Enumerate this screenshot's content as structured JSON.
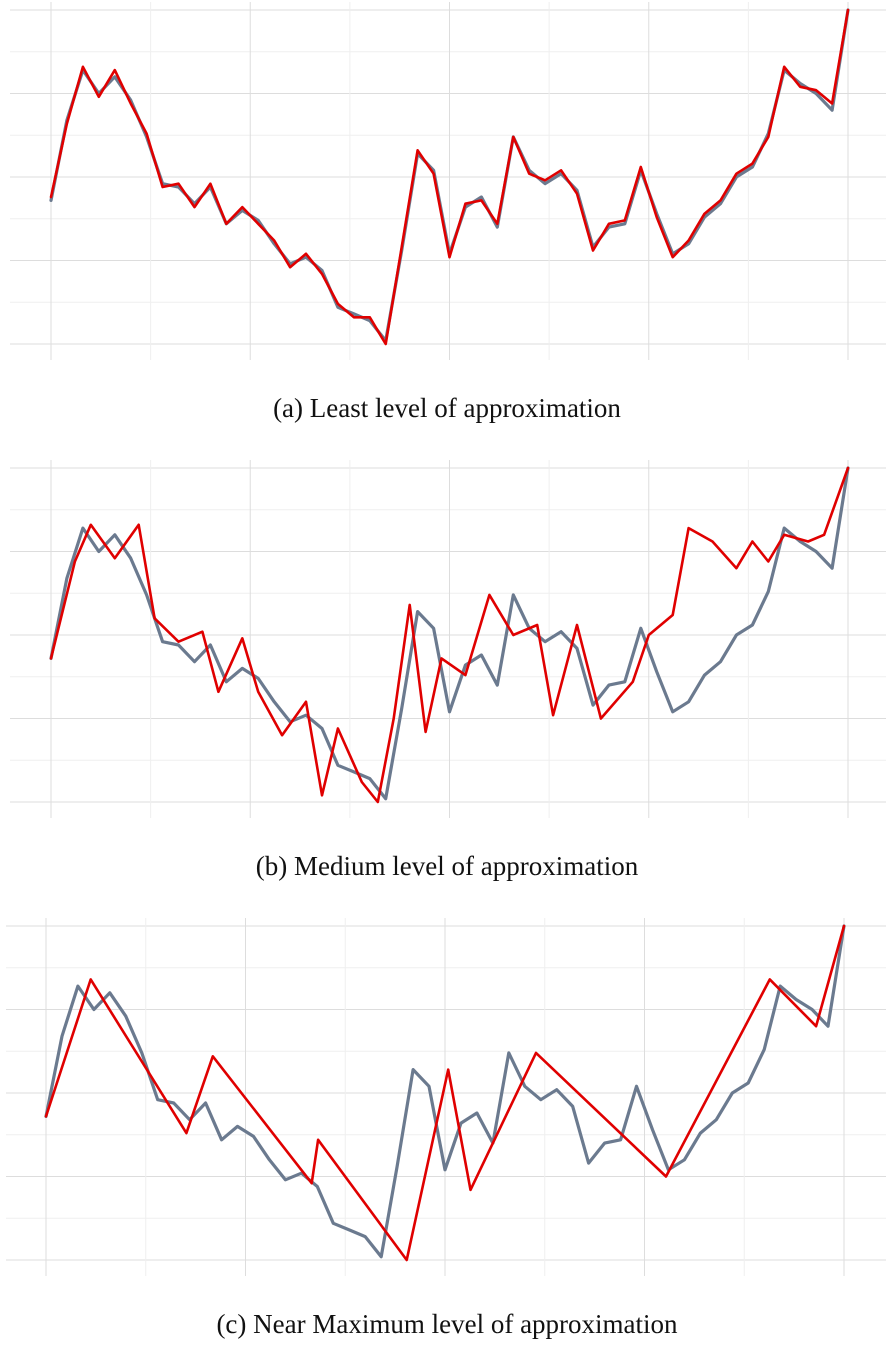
{
  "chart_data": [
    {
      "type": "line",
      "caption": "(a) Least level of approximation",
      "grid": true,
      "series": [
        {
          "role": "original",
          "color": "#6b7a8f",
          "x": [
            0,
            2,
            4,
            6,
            8,
            10,
            12,
            14,
            16,
            18,
            20,
            22,
            24,
            26,
            28,
            30,
            32,
            34,
            36,
            38,
            40,
            42,
            44,
            46,
            48,
            50,
            52,
            54,
            56,
            58,
            60,
            62,
            64,
            66,
            68,
            70,
            72,
            74,
            76,
            78,
            80,
            82,
            84,
            86,
            88,
            90,
            92,
            94,
            96,
            98,
            100
          ],
          "y": [
            0.43,
            0.67,
            0.82,
            0.75,
            0.8,
            0.73,
            0.62,
            0.48,
            0.47,
            0.42,
            0.47,
            0.36,
            0.4,
            0.37,
            0.3,
            0.24,
            0.26,
            0.22,
            0.11,
            0.09,
            0.07,
            0.01,
            0.28,
            0.57,
            0.52,
            0.27,
            0.41,
            0.44,
            0.35,
            0.62,
            0.52,
            0.48,
            0.51,
            0.46,
            0.29,
            0.35,
            0.36,
            0.52,
            0.39,
            0.27,
            0.3,
            0.38,
            0.42,
            0.5,
            0.53,
            0.63,
            0.82,
            0.78,
            0.75,
            0.7,
            1.0
          ]
        },
        {
          "role": "approximation",
          "color": "#e00000",
          "x": [
            0,
            2,
            4,
            6,
            8,
            10,
            12,
            14,
            16,
            18,
            20,
            22,
            24,
            26,
            28,
            30,
            32,
            34,
            36,
            38,
            40,
            42,
            44,
            46,
            48,
            50,
            52,
            54,
            56,
            58,
            60,
            62,
            64,
            66,
            68,
            70,
            72,
            74,
            76,
            78,
            80,
            82,
            84,
            86,
            88,
            90,
            92,
            94,
            96,
            98,
            100
          ],
          "y": [
            0.44,
            0.66,
            0.83,
            0.74,
            0.82,
            0.72,
            0.63,
            0.47,
            0.48,
            0.41,
            0.48,
            0.36,
            0.41,
            0.36,
            0.31,
            0.23,
            0.27,
            0.21,
            0.12,
            0.08,
            0.08,
            0.0,
            0.29,
            0.58,
            0.51,
            0.26,
            0.42,
            0.43,
            0.36,
            0.62,
            0.51,
            0.49,
            0.52,
            0.45,
            0.28,
            0.36,
            0.37,
            0.53,
            0.38,
            0.26,
            0.31,
            0.39,
            0.43,
            0.51,
            0.54,
            0.62,
            0.83,
            0.77,
            0.76,
            0.72,
            1.0
          ]
        }
      ]
    },
    {
      "type": "line",
      "caption": "(b) Medium level of approximation",
      "grid": true,
      "series": [
        {
          "role": "original",
          "color": "#6b7a8f",
          "x": [
            0,
            2,
            4,
            6,
            8,
            10,
            12,
            14,
            16,
            18,
            20,
            22,
            24,
            26,
            28,
            30,
            32,
            34,
            36,
            38,
            40,
            42,
            44,
            46,
            48,
            50,
            52,
            54,
            56,
            58,
            60,
            62,
            64,
            66,
            68,
            70,
            72,
            74,
            76,
            78,
            80,
            82,
            84,
            86,
            88,
            90,
            92,
            94,
            96,
            98,
            100
          ],
          "y": [
            0.43,
            0.67,
            0.82,
            0.75,
            0.8,
            0.73,
            0.62,
            0.48,
            0.47,
            0.42,
            0.47,
            0.36,
            0.4,
            0.37,
            0.3,
            0.24,
            0.26,
            0.22,
            0.11,
            0.09,
            0.07,
            0.01,
            0.28,
            0.57,
            0.52,
            0.27,
            0.41,
            0.44,
            0.35,
            0.62,
            0.52,
            0.48,
            0.51,
            0.46,
            0.29,
            0.35,
            0.36,
            0.52,
            0.39,
            0.27,
            0.3,
            0.38,
            0.42,
            0.5,
            0.53,
            0.63,
            0.82,
            0.78,
            0.75,
            0.7,
            1.0
          ]
        },
        {
          "role": "approximation",
          "color": "#e00000",
          "x": [
            0,
            3,
            5,
            8,
            11,
            13,
            16,
            19,
            21,
            24,
            26,
            29,
            32,
            34,
            36,
            39,
            41,
            43,
            45,
            47,
            49,
            52,
            55,
            58,
            61,
            63,
            66,
            69,
            73,
            75,
            78,
            80,
            83,
            86,
            88,
            90,
            92,
            95,
            97,
            100
          ],
          "y": [
            0.43,
            0.72,
            0.83,
            0.73,
            0.83,
            0.55,
            0.48,
            0.51,
            0.33,
            0.49,
            0.33,
            0.2,
            0.3,
            0.02,
            0.22,
            0.06,
            0.0,
            0.25,
            0.59,
            0.21,
            0.43,
            0.38,
            0.62,
            0.5,
            0.53,
            0.26,
            0.53,
            0.25,
            0.36,
            0.5,
            0.56,
            0.82,
            0.78,
            0.7,
            0.78,
            0.72,
            0.8,
            0.78,
            0.8,
            1.0
          ]
        }
      ]
    },
    {
      "type": "line",
      "caption": "(c) Near Maximum level of approximation",
      "grid": true,
      "series": [
        {
          "role": "original",
          "color": "#6b7a8f",
          "x": [
            0,
            2,
            4,
            6,
            8,
            10,
            12,
            14,
            16,
            18,
            20,
            22,
            24,
            26,
            28,
            30,
            32,
            34,
            36,
            38,
            40,
            42,
            44,
            46,
            48,
            50,
            52,
            54,
            56,
            58,
            60,
            62,
            64,
            66,
            68,
            70,
            72,
            74,
            76,
            78,
            80,
            82,
            84,
            86,
            88,
            90,
            92,
            94,
            96,
            98,
            100
          ],
          "y": [
            0.43,
            0.67,
            0.82,
            0.75,
            0.8,
            0.73,
            0.62,
            0.48,
            0.47,
            0.42,
            0.47,
            0.36,
            0.4,
            0.37,
            0.3,
            0.24,
            0.26,
            0.22,
            0.11,
            0.09,
            0.07,
            0.01,
            0.28,
            0.57,
            0.52,
            0.27,
            0.41,
            0.44,
            0.35,
            0.62,
            0.52,
            0.48,
            0.51,
            0.46,
            0.29,
            0.35,
            0.36,
            0.52,
            0.39,
            0.27,
            0.3,
            0.38,
            0.42,
            0.5,
            0.53,
            0.63,
            0.82,
            0.78,
            0.75,
            0.7,
            1.0
          ]
        },
        {
          "role": "approximation",
          "color": "#e00000",
          "x": [
            0,
            5.6,
            17.6,
            20.9,
            33.3,
            34.1,
            45.2,
            50.4,
            53.2,
            61.4,
            77.7,
            90.7,
            96.5,
            100
          ],
          "y": [
            0.43,
            0.84,
            0.38,
            0.61,
            0.23,
            0.36,
            0.0,
            0.57,
            0.21,
            0.62,
            0.25,
            0.84,
            0.7,
            1.0
          ]
        }
      ]
    }
  ]
}
